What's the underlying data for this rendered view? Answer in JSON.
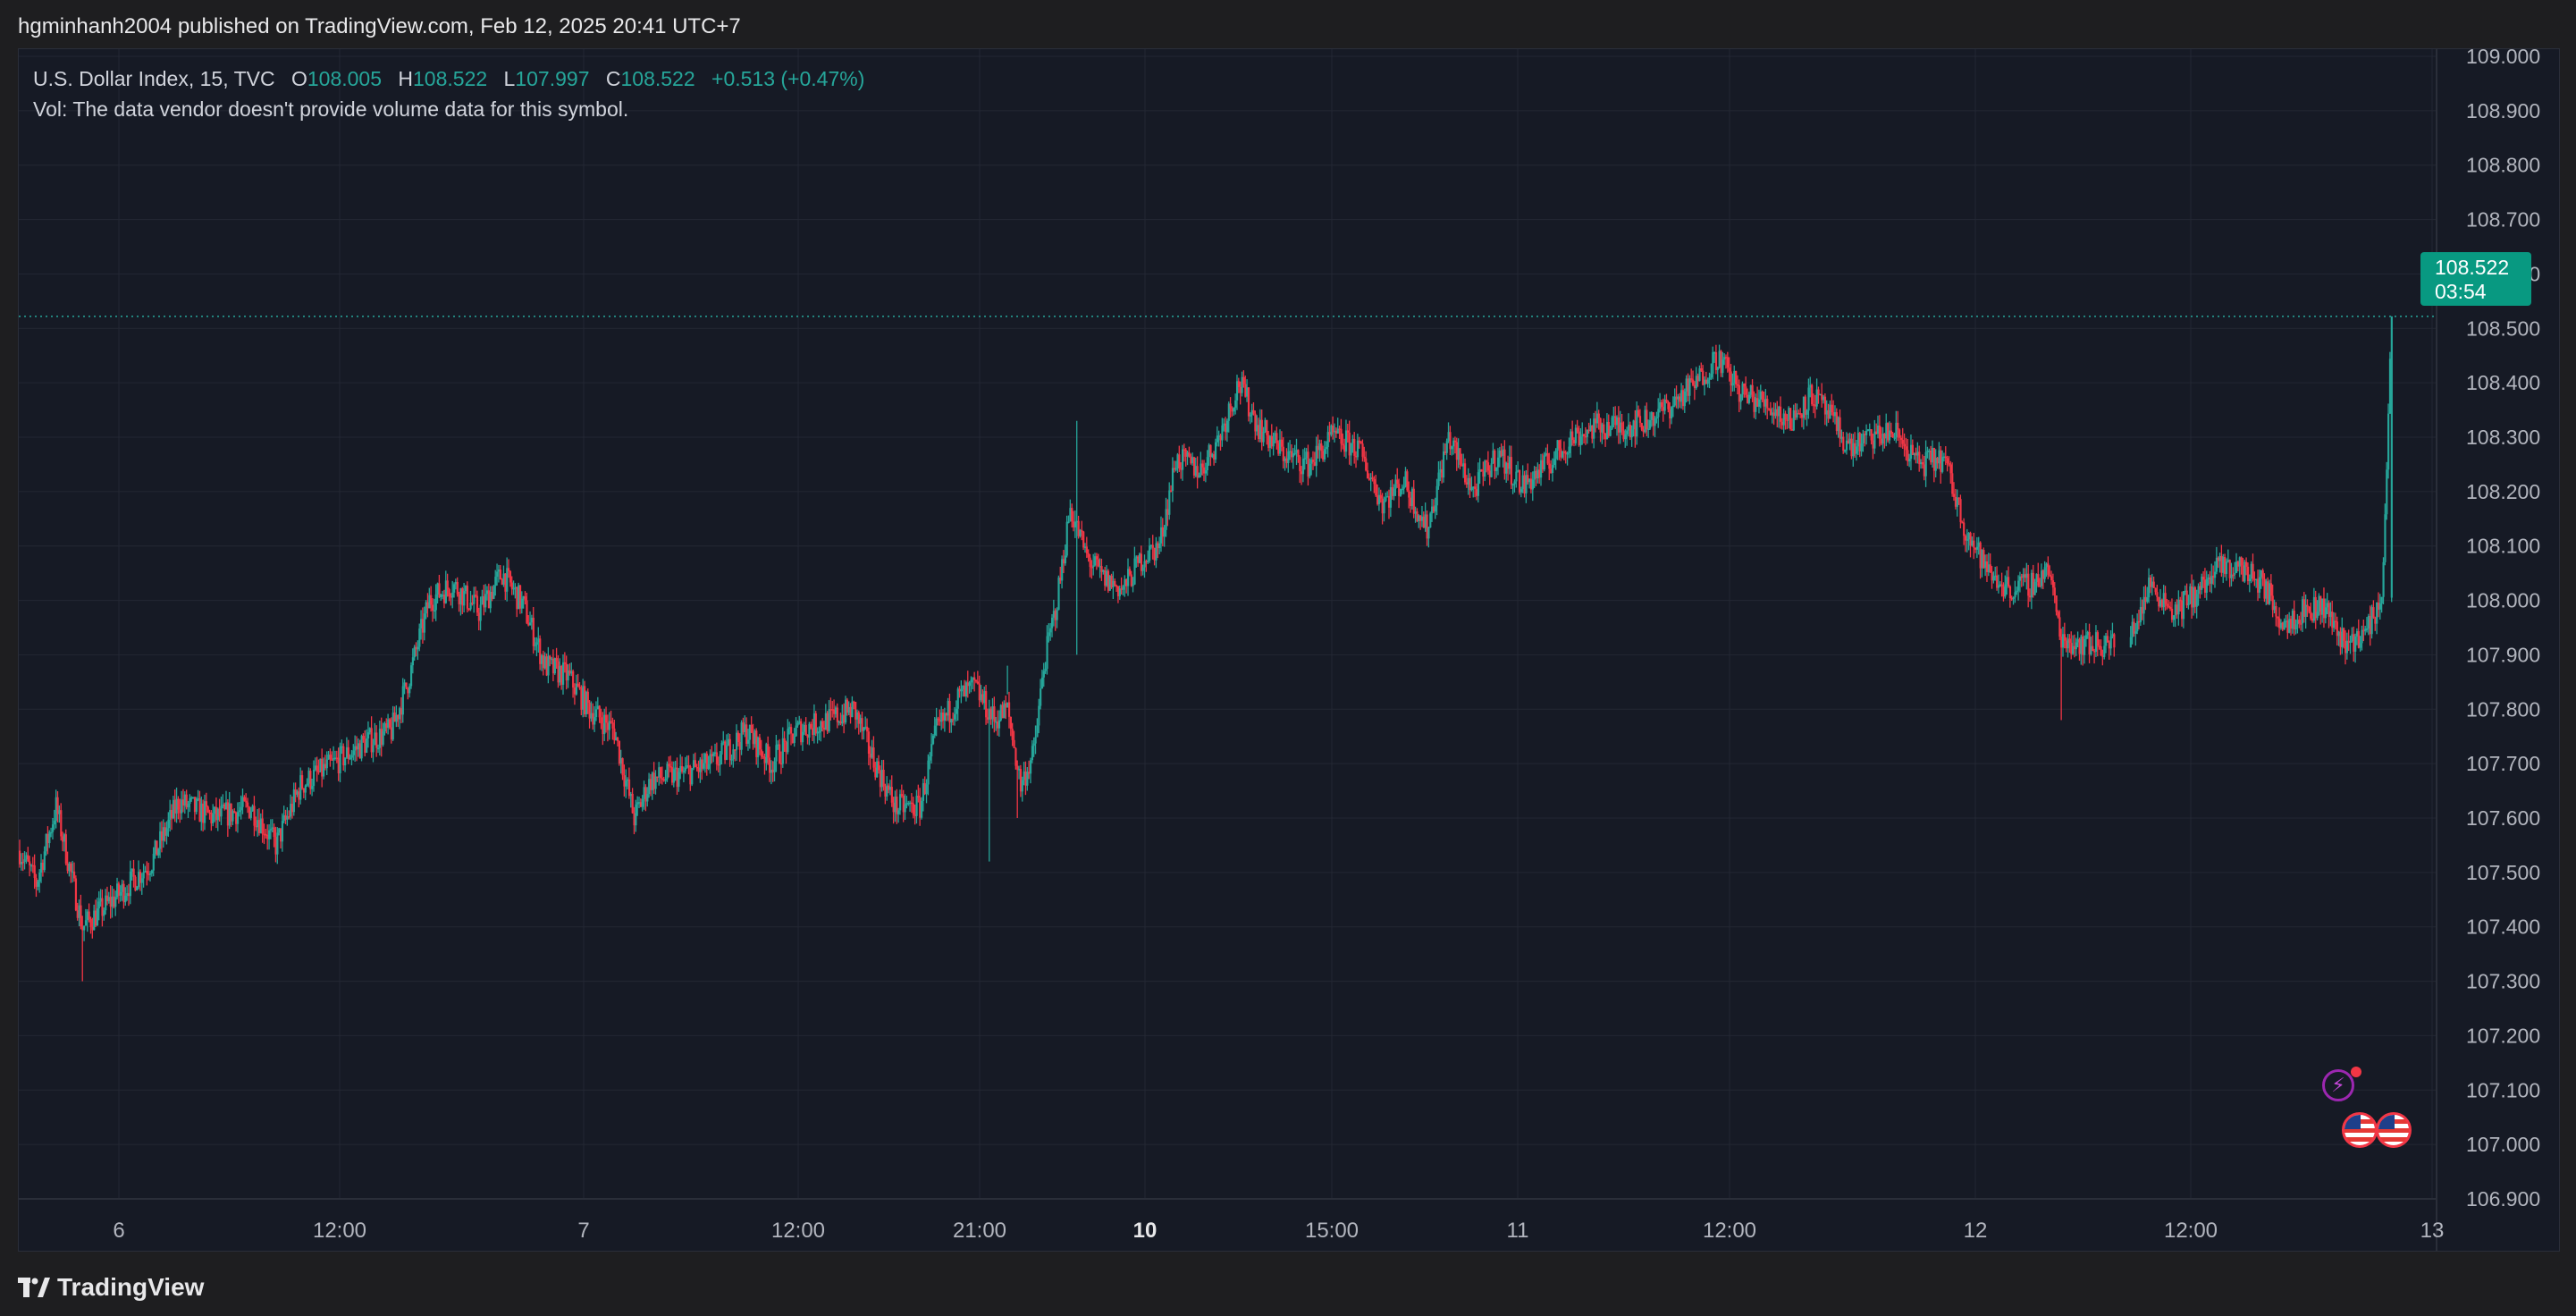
{
  "header": {
    "publisher_line": "hgminhanh2004 published on TradingView.com, Feb 12, 2025 20:41 UTC+7"
  },
  "legend": {
    "symbol": "U.S. Dollar Index, 15, TVC",
    "open_key": "O",
    "open": "108.005",
    "high_key": "H",
    "high": "108.522",
    "low_key": "L",
    "low": "107.997",
    "close_key": "C",
    "close": "108.522",
    "change": "+0.513 (+0.47%)",
    "volume_note": "Vol: The data vendor doesn't provide volume data for this symbol."
  },
  "price_badge": {
    "price": "108.522",
    "countdown": "03:54"
  },
  "footer": {
    "brand": "TradingView"
  },
  "colors": {
    "up": "#26a69a",
    "down": "#f23645",
    "background": "#161a25",
    "grid": "#232733",
    "axis_text": "#b2b5be",
    "badge": "#089981"
  },
  "icons": [
    "tradingview-logo-icon",
    "flash-event-icon",
    "us-flag-event-icon"
  ],
  "chart_data": {
    "type": "candlestick",
    "title": "U.S. Dollar Index, 15, TVC",
    "interval": "15",
    "ylim": [
      106.9,
      109.0
    ],
    "y_ticks": [
      "106.900",
      "107.000",
      "107.100",
      "107.200",
      "107.300",
      "107.400",
      "107.500",
      "107.600",
      "107.700",
      "107.800",
      "107.900",
      "108.000",
      "108.100",
      "108.200",
      "108.300",
      "108.400",
      "108.500",
      "108.600",
      "108.700",
      "108.800",
      "108.900",
      "109.000"
    ],
    "x_ticks": [
      {
        "label": "6",
        "bold": false
      },
      {
        "label": "12:00",
        "bold": false
      },
      {
        "label": "7",
        "bold": false
      },
      {
        "label": "12:00",
        "bold": false
      },
      {
        "label": "21:00",
        "bold": false
      },
      {
        "label": "10",
        "bold": true
      },
      {
        "label": "15:00",
        "bold": false
      },
      {
        "label": "11",
        "bold": false
      },
      {
        "label": "12:00",
        "bold": false
      },
      {
        "label": "12",
        "bold": false
      },
      {
        "label": "12:00",
        "bold": false
      },
      {
        "label": "13",
        "bold": false
      }
    ],
    "last_price": 108.522,
    "grid": true,
    "path": [
      [
        0,
        107.54
      ],
      [
        10,
        107.48
      ],
      [
        22,
        107.62
      ],
      [
        38,
        107.4
      ],
      [
        60,
        107.46
      ],
      [
        80,
        107.52
      ],
      [
        96,
        107.63
      ],
      [
        118,
        107.6
      ],
      [
        140,
        107.62
      ],
      [
        155,
        107.55
      ],
      [
        170,
        107.66
      ],
      [
        190,
        107.7
      ],
      [
        210,
        107.74
      ],
      [
        225,
        107.76
      ],
      [
        235,
        107.85
      ],
      [
        248,
        108.0
      ],
      [
        262,
        108.03
      ],
      [
        278,
        107.98
      ],
      [
        292,
        108.05
      ],
      [
        305,
        107.99
      ],
      [
        318,
        107.88
      ],
      [
        332,
        107.86
      ],
      [
        345,
        107.8
      ],
      [
        360,
        107.76
      ],
      [
        372,
        107.6
      ],
      [
        382,
        107.67
      ],
      [
        400,
        107.68
      ],
      [
        420,
        107.7
      ],
      [
        440,
        107.76
      ],
      [
        455,
        107.7
      ],
      [
        470,
        107.76
      ],
      [
        490,
        107.78
      ],
      [
        505,
        107.8
      ],
      [
        515,
        107.72
      ],
      [
        530,
        107.62
      ],
      [
        545,
        107.62
      ],
      [
        555,
        107.76
      ],
      [
        568,
        107.82
      ],
      [
        578,
        107.84
      ],
      [
        590,
        107.78
      ],
      [
        598,
        107.8
      ],
      [
        606,
        107.66
      ],
      [
        614,
        107.72
      ],
      [
        620,
        107.88
      ],
      [
        628,
        108.0
      ],
      [
        636,
        108.17
      ],
      [
        646,
        108.08
      ],
      [
        656,
        108.04
      ],
      [
        668,
        108.02
      ],
      [
        680,
        108.08
      ],
      [
        690,
        108.1
      ],
      [
        700,
        108.26
      ],
      [
        715,
        108.24
      ],
      [
        726,
        108.3
      ],
      [
        738,
        108.4
      ],
      [
        750,
        108.32
      ],
      [
        765,
        108.27
      ],
      [
        780,
        108.25
      ],
      [
        795,
        108.3
      ],
      [
        810,
        108.28
      ],
      [
        825,
        108.18
      ],
      [
        838,
        108.22
      ],
      [
        852,
        108.13
      ],
      [
        865,
        108.3
      ],
      [
        880,
        108.2
      ],
      [
        895,
        108.27
      ],
      [
        910,
        108.21
      ],
      [
        925,
        108.25
      ],
      [
        940,
        108.3
      ],
      [
        955,
        108.32
      ],
      [
        970,
        108.32
      ],
      [
        985,
        108.33
      ],
      [
        1000,
        108.36
      ],
      [
        1015,
        108.4
      ],
      [
        1028,
        108.45
      ],
      [
        1042,
        108.38
      ],
      [
        1058,
        108.36
      ],
      [
        1072,
        108.33
      ],
      [
        1085,
        108.38
      ],
      [
        1095,
        108.34
      ],
      [
        1108,
        108.28
      ],
      [
        1122,
        108.3
      ],
      [
        1135,
        108.31
      ],
      [
        1150,
        108.25
      ],
      [
        1165,
        108.26
      ],
      [
        1178,
        108.13
      ],
      [
        1192,
        108.05
      ],
      [
        1205,
        108.02
      ],
      [
        1218,
        108.03
      ],
      [
        1228,
        108.06
      ],
      [
        1236,
        107.93
      ],
      [
        1250,
        107.92
      ],
      [
        1265,
        107.92
      ],
      [
        1276,
        107.92
      ],
      [
        1290,
        108.03
      ],
      [
        1305,
        107.98
      ],
      [
        1320,
        108.02
      ],
      [
        1332,
        108.06
      ],
      [
        1345,
        108.06
      ],
      [
        1358,
        108.03
      ],
      [
        1370,
        107.96
      ],
      [
        1382,
        107.98
      ],
      [
        1395,
        107.99
      ],
      [
        1408,
        107.92
      ],
      [
        1420,
        107.94
      ],
      [
        1430,
        108.0
      ],
      [
        1436,
        108.522
      ]
    ]
  }
}
